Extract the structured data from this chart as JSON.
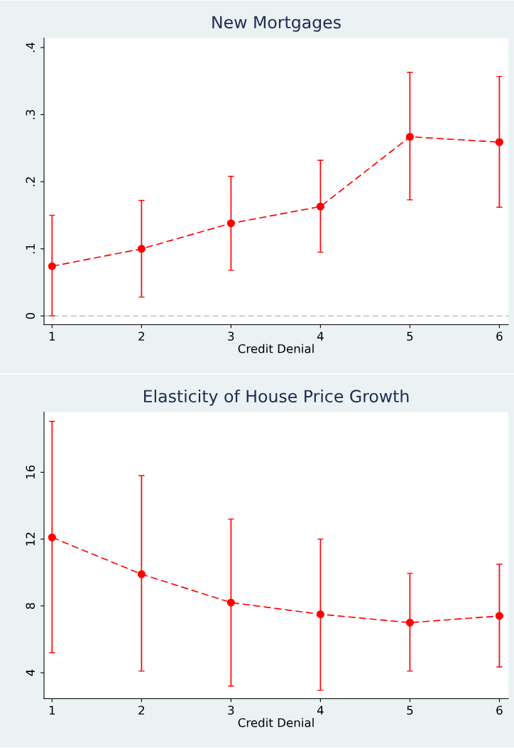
{
  "chart_data": [
    {
      "type": "line",
      "title": "New Mortgages",
      "xlabel": "Credit Denial",
      "x": [
        1,
        2,
        3,
        4,
        5,
        6
      ],
      "series": [
        {
          "color": "#ff0000",
          "values": [
            0.074,
            0.1,
            0.138,
            0.163,
            0.267,
            0.259
          ],
          "errors": [
            [
              0.0,
              0.15
            ],
            [
              0.028,
              0.172
            ],
            [
              0.068,
              0.208
            ],
            [
              0.095,
              0.232
            ],
            [
              0.173,
              0.363
            ],
            [
              0.162,
              0.357
            ]
          ]
        }
      ],
      "xlim": [
        0.91,
        6.1
      ],
      "xticks": [
        1,
        2,
        3,
        4,
        5,
        6
      ],
      "ylim": [
        -0.013,
        0.414
      ],
      "yticks": [
        {
          "value": 0,
          "label": "0"
        },
        {
          "value": 0.1,
          "label": ".1"
        },
        {
          "value": 0.2,
          "label": ".2"
        },
        {
          "value": 0.3,
          "label": ".3"
        },
        {
          "value": 0.4,
          "label": ".4"
        }
      ],
      "ref_lines": [
        {
          "axis": "y",
          "value": 0,
          "color": "#b4b4b4",
          "line_style": "dashed"
        }
      ],
      "marker": "circle",
      "line_style": "dashed",
      "grid": false,
      "legend": false
    },
    {
      "type": "line",
      "title": "Elasticity of House Price Growth",
      "xlabel": "Credit Denial",
      "x": [
        1,
        2,
        3,
        4,
        5,
        6
      ],
      "series": [
        {
          "color": "#ff0000",
          "values": [
            12.1,
            9.9,
            8.2,
            7.5,
            7.0,
            7.4
          ],
          "errors": [
            [
              5.2,
              19.05
            ],
            [
              4.1,
              15.8
            ],
            [
              3.2,
              13.2
            ],
            [
              2.95,
              12.0
            ],
            [
              4.1,
              9.95
            ],
            [
              4.35,
              10.5
            ]
          ]
        }
      ],
      "xlim": [
        0.91,
        6.1
      ],
      "xticks": [
        1,
        2,
        3,
        4,
        5,
        6
      ],
      "ylim": [
        2.45,
        19.6
      ],
      "yticks": [
        4,
        8,
        12,
        16
      ],
      "marker": "circle",
      "line_style": "dashed",
      "grid": false,
      "legend": false
    }
  ]
}
